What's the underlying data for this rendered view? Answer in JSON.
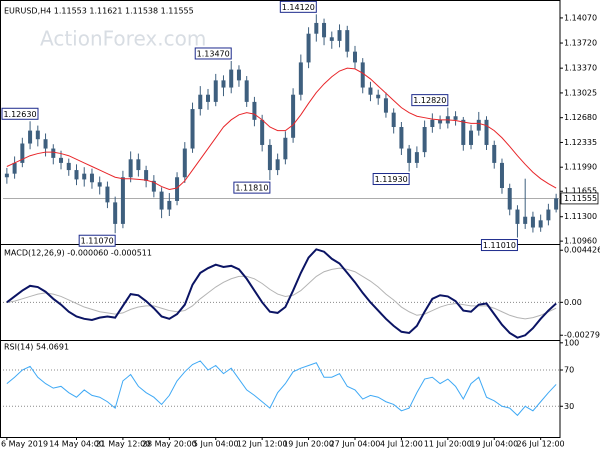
{
  "chart_data": [
    {
      "type": "candlestick",
      "title": "EURUSD,H4 1.11553 1.11621 1.11538 1.11555",
      "watermark": "ActionForex.com",
      "color": "#3e5f7e",
      "categories": [
        "6 May 2019",
        null,
        null,
        null,
        null,
        null,
        null,
        null,
        null,
        "14 May 04:00",
        null,
        null,
        null,
        null,
        null,
        "21 May 12:00",
        null,
        null,
        null,
        null,
        null,
        "28 May 20:00",
        null,
        null,
        null,
        null,
        null,
        "5 Jun 04:00",
        null,
        null,
        null,
        null,
        null,
        "12 Jun 12:00",
        null,
        null,
        null,
        null,
        null,
        "19 Jun 20:00",
        null,
        null,
        null,
        null,
        null,
        "27 Jun 04:00",
        null,
        null,
        null,
        null,
        null,
        "4 Jul 12:00",
        null,
        null,
        null,
        null,
        null,
        "11 Jul 20:00",
        null,
        null,
        null,
        null,
        null,
        "19 Jul 04:00",
        null,
        null,
        null,
        null,
        null,
        "26 Jul 12:00",
        null,
        null
      ],
      "open": [
        1.1185,
        1.119,
        1.1205,
        1.1232,
        1.125,
        1.1238,
        1.1225,
        1.1212,
        1.1205,
        1.1195,
        1.1182,
        1.119,
        1.1178,
        1.1172,
        1.115,
        1.112,
        1.1185,
        1.121,
        1.1195,
        1.118,
        1.1165,
        1.114,
        1.1152,
        1.1185,
        1.1225,
        1.128,
        1.13,
        1.129,
        1.132,
        1.131,
        1.1335,
        1.132,
        1.129,
        1.1265,
        1.123,
        1.1195,
        1.121,
        1.124,
        1.13,
        1.1345,
        1.1385,
        1.14,
        1.138,
        1.1375,
        1.139,
        1.136,
        1.1345,
        1.131,
        1.13,
        1.1295,
        1.1275,
        1.1255,
        1.1225,
        1.1205,
        1.122,
        1.1255,
        1.1265,
        1.126,
        1.127,
        1.1265,
        1.123,
        1.125,
        1.1265,
        1.123,
        1.1205,
        1.117,
        1.114,
        1.112,
        1.113,
        1.1115,
        1.1125,
        1.114
      ],
      "high": [
        1.1198,
        1.1214,
        1.124,
        1.1263,
        1.1257,
        1.1246,
        1.1231,
        1.1222,
        1.1211,
        1.1203,
        1.1199,
        1.1197,
        1.1186,
        1.1179,
        1.1158,
        1.1194,
        1.1221,
        1.1218,
        1.1201,
        1.1188,
        1.1171,
        1.1163,
        1.1192,
        1.1234,
        1.1289,
        1.1312,
        1.1308,
        1.1329,
        1.1327,
        1.1347,
        1.1341,
        1.1326,
        1.1297,
        1.1272,
        1.1238,
        1.1218,
        1.1249,
        1.1309,
        1.1356,
        1.1394,
        1.1412,
        1.1406,
        1.1388,
        1.1398,
        1.1396,
        1.1368,
        1.1351,
        1.1318,
        1.1307,
        1.1303,
        1.1281,
        1.1262,
        1.123,
        1.1228,
        1.1264,
        1.1274,
        1.1271,
        1.1282,
        1.1277,
        1.1269,
        1.1258,
        1.1276,
        1.127,
        1.1236,
        1.1211,
        1.1176,
        1.1146,
        1.1183,
        1.1137,
        1.1133,
        1.1148,
        1.1162
      ],
      "low": [
        1.1176,
        1.1183,
        1.1199,
        1.1224,
        1.1228,
        1.1214,
        1.1203,
        1.1196,
        1.1187,
        1.1174,
        1.1172,
        1.1169,
        1.1161,
        1.1142,
        1.1107,
        1.1114,
        1.1178,
        1.1186,
        1.1171,
        1.1157,
        1.1128,
        1.1131,
        1.1146,
        1.1177,
        1.1219,
        1.1271,
        1.1279,
        1.1284,
        1.1298,
        1.1302,
        1.1311,
        1.1283,
        1.1256,
        1.1221,
        1.1181,
        1.1188,
        1.1203,
        1.1233,
        1.1292,
        1.1337,
        1.1374,
        1.1369,
        1.1364,
        1.1366,
        1.1352,
        1.1336,
        1.1302,
        1.1291,
        1.1286,
        1.1268,
        1.1246,
        1.1216,
        1.1193,
        1.1198,
        1.1213,
        1.1247,
        1.1252,
        1.1253,
        1.1257,
        1.1222,
        1.1224,
        1.1243,
        1.1223,
        1.1197,
        1.1162,
        1.1132,
        1.1101,
        1.1113,
        1.1108,
        1.1109,
        1.1118,
        1.1136
      ],
      "close": [
        1.119,
        1.1205,
        1.1232,
        1.125,
        1.1238,
        1.1225,
        1.1212,
        1.1205,
        1.1195,
        1.1182,
        1.119,
        1.1178,
        1.1172,
        1.115,
        1.112,
        1.1185,
        1.121,
        1.1195,
        1.118,
        1.1165,
        1.114,
        1.1152,
        1.1185,
        1.1225,
        1.128,
        1.13,
        1.129,
        1.132,
        1.131,
        1.1335,
        1.132,
        1.129,
        1.1265,
        1.123,
        1.1195,
        1.121,
        1.124,
        1.13,
        1.1345,
        1.1385,
        1.14,
        1.138,
        1.1375,
        1.139,
        1.136,
        1.1345,
        1.131,
        1.13,
        1.1295,
        1.1275,
        1.1255,
        1.1225,
        1.1205,
        1.122,
        1.1255,
        1.1265,
        1.126,
        1.127,
        1.1265,
        1.123,
        1.125,
        1.1265,
        1.123,
        1.1205,
        1.117,
        1.114,
        1.112,
        1.113,
        1.1115,
        1.1125,
        1.114,
        1.11555
      ],
      "overlays": [
        {
          "color": "#e8262a",
          "values": [
            1.12,
            1.1205,
            1.121,
            1.1215,
            1.1218,
            1.122,
            1.122,
            1.1218,
            1.1215,
            1.121,
            1.1205,
            1.12,
            1.1195,
            1.119,
            1.1185,
            1.1183,
            1.1183,
            1.1182,
            1.1181,
            1.1178,
            1.1172,
            1.1168,
            1.117,
            1.118,
            1.1195,
            1.121,
            1.1225,
            1.124,
            1.1255,
            1.1265,
            1.1272,
            1.1275,
            1.1273,
            1.1265,
            1.1255,
            1.125,
            1.125,
            1.1258,
            1.1272,
            1.1288,
            1.1303,
            1.1315,
            1.1325,
            1.1333,
            1.1337,
            1.1336,
            1.133,
            1.1322,
            1.1312,
            1.1302,
            1.1292,
            1.1282,
            1.1275,
            1.127,
            1.1268,
            1.1266,
            1.1265,
            1.1265,
            1.1264,
            1.1262,
            1.126,
            1.126,
            1.1257,
            1.125,
            1.124,
            1.1228,
            1.1215,
            1.1203,
            1.1192,
            1.1183,
            1.1176,
            1.117
          ]
        }
      ],
      "last_price": {
        "value": 1.11555,
        "label": "1.11555"
      },
      "annotations": [
        {
          "value": 1.1263,
          "label": "1.12630"
        },
        {
          "value": 1.1107,
          "label": "1.11070"
        },
        {
          "value": 1.1347,
          "label": "1.13470"
        },
        {
          "value": 1.1181,
          "label": "1.11810"
        },
        {
          "value": 1.1412,
          "label": "1.14120"
        },
        {
          "value": 1.1193,
          "label": "1.11930"
        },
        {
          "value": 1.1282,
          "label": "1.12820"
        },
        {
          "value": 1.1101,
          "label": "1.11010"
        }
      ],
      "ylim": [
        1.1092,
        1.1425
      ],
      "yticks": [
        {
          "value": 1.1407,
          "label": "1.14070"
        },
        {
          "value": 1.1372,
          "label": "1.13720"
        },
        {
          "value": 1.1337,
          "label": "1.13370"
        },
        {
          "value": 1.13025,
          "label": "1.13025"
        },
        {
          "value": 1.1268,
          "label": "1.12680"
        },
        {
          "value": 1.12335,
          "label": "1.12335"
        },
        {
          "value": 1.1199,
          "label": "1.11990"
        },
        {
          "value": 1.11655,
          "label": "1.11655"
        },
        {
          "value": 1.113,
          "label": "1.11300"
        },
        {
          "value": 1.1096,
          "label": "1.10960"
        }
      ]
    },
    {
      "type": "line",
      "title": "MACD(12,26,9) -0.000060 -0.000511",
      "series": [
        {
          "color": "#b4b4b4",
          "values": [
            0.0,
            0.0001,
            0.0003,
            0.0005,
            0.0007,
            0.0008,
            0.0007,
            0.0005,
            0.0002,
            -0.0001,
            -0.0004,
            -0.0006,
            -0.0008,
            -0.0009,
            -0.001,
            -0.0009,
            -0.0006,
            -0.0004,
            -0.0003,
            -0.0003,
            -0.0005,
            -0.0007,
            -0.0008,
            -0.0007,
            -0.0003,
            0.0003,
            0.0008,
            0.0013,
            0.0017,
            0.002,
            0.0022,
            0.0022,
            0.002,
            0.0016,
            0.0011,
            0.0007,
            0.0005,
            0.0006,
            0.001,
            0.0016,
            0.0022,
            0.0026,
            0.0028,
            0.0029,
            0.0028,
            0.0026,
            0.0022,
            0.0018,
            0.0013,
            0.0007,
            0.0002,
            -0.0004,
            -0.0008,
            -0.0011,
            -0.001,
            -0.0007,
            -0.0004,
            -0.0002,
            -0.0001,
            -0.0002,
            -0.0003,
            -0.0003,
            -0.0003,
            -0.0005,
            -0.0008,
            -0.0011,
            -0.0013,
            -0.0014,
            -0.0013,
            -0.0011,
            -0.0008,
            -0.0005
          ]
        },
        {
          "color": "#0b1464",
          "values": [
            0.0,
            0.0005,
            0.001,
            0.0014,
            0.0013,
            0.0009,
            0.0003,
            -0.0002,
            -0.0008,
            -0.0012,
            -0.0014,
            -0.0015,
            -0.0013,
            -0.0012,
            -0.0013,
            -0.0003,
            0.0007,
            0.0006,
            0.0001,
            -0.0005,
            -0.0012,
            -0.0014,
            -0.001,
            -0.0002,
            0.0015,
            0.0025,
            0.0029,
            0.0032,
            0.003,
            0.0031,
            0.0028,
            0.002,
            0.001,
            0.0,
            -0.0008,
            -0.0009,
            -0.0004,
            0.001,
            0.0025,
            0.0038,
            0.0045,
            0.0043,
            0.0037,
            0.0033,
            0.0025,
            0.0017,
            0.0008,
            0.0,
            -0.0007,
            -0.0014,
            -0.002,
            -0.0025,
            -0.0026,
            -0.002,
            -0.0008,
            0.0003,
            0.0006,
            0.0005,
            0.0001,
            -0.0007,
            -0.0008,
            -0.0002,
            -0.0001,
            -0.001,
            -0.0019,
            -0.0026,
            -0.003,
            -0.0028,
            -0.0022,
            -0.0014,
            -0.0007,
            -0.0001
          ]
        }
      ],
      "levels": [
        0
      ],
      "ylim": [
        -0.0032,
        0.0047
      ],
      "yticks": [
        0.004426,
        {
          "value": 0,
          "label": "0.00"
        },
        -0.002795
      ]
    },
    {
      "type": "line",
      "title": "RSI(14) 54.0691",
      "series": [
        {
          "color": "#3fa9f5",
          "values": [
            55,
            62,
            70,
            74,
            62,
            55,
            50,
            52,
            45,
            40,
            48,
            42,
            40,
            35,
            28,
            58,
            65,
            52,
            45,
            40,
            32,
            42,
            58,
            68,
            76,
            80,
            70,
            75,
            66,
            72,
            60,
            48,
            42,
            35,
            28,
            45,
            55,
            68,
            72,
            75,
            78,
            62,
            62,
            66,
            52,
            48,
            38,
            42,
            40,
            35,
            32,
            25,
            28,
            45,
            60,
            62,
            55,
            60,
            52,
            38,
            55,
            62,
            40,
            36,
            30,
            28,
            20,
            30,
            25,
            35,
            45,
            54.0691
          ]
        }
      ],
      "levels": [
        70,
        30
      ],
      "ylim": [
        -5,
        102
      ],
      "yticks": [
        100,
        70,
        30
      ]
    }
  ]
}
